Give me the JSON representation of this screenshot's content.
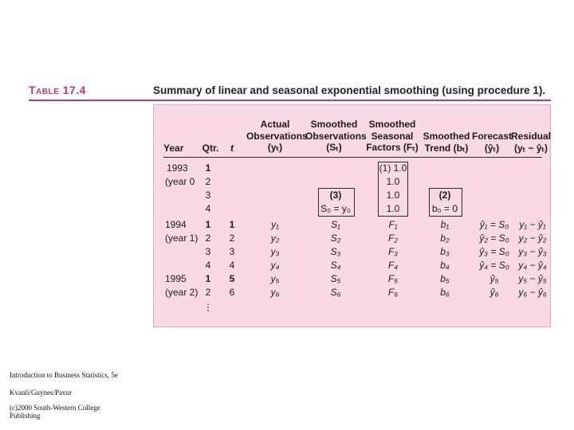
{
  "heading": {
    "table_label": "Table 17.4",
    "title": "Summary of linear and seasonal exponential smoothing (using procedure 1)."
  },
  "columns": {
    "year": "Year",
    "qtr": "Qtr.",
    "t": "t",
    "actual_1": "Actual",
    "actual_2": "Observations",
    "actual_3": "(yₜ)",
    "smoothed_1": "Smoothed",
    "smoothed_2": "Observations",
    "smoothed_3": "(Sₜ)",
    "seasonal_1": "Smoothed",
    "seasonal_2": "Seasonal",
    "seasonal_3": "Factors (Fₜ)",
    "trend_1": "Smoothed",
    "trend_2": "Trend (bₜ)",
    "forecast_1": "Forecast",
    "forecast_2": "(ŷₜ)",
    "residual_1": "Residual",
    "residual_2": "(yₜ − ŷₜ)"
  },
  "init": {
    "year_a": "1993",
    "year_b": "(year 0",
    "qtrs": [
      "1",
      "2",
      "3",
      "4"
    ],
    "seasonal": [
      "(1) 1.0",
      "1.0",
      "1.0",
      "1.0"
    ],
    "box3_label": "(3)",
    "box3_value": "S₀ = y₀",
    "box2_label": "(2)",
    "box2_value": "b₀ = 0"
  },
  "rows": [
    {
      "year": "1994",
      "qtr": "1",
      "t": "1",
      "y": "y₁",
      "s": "S₁",
      "f": "F₁",
      "b": "b₁",
      "fc": "ŷ₁ = S₀",
      "r": "y₁ − ŷ₁"
    },
    {
      "year": "(year 1)",
      "qtr": "2",
      "t": "2",
      "y": "y₂",
      "s": "S₂",
      "f": "F₂",
      "b": "b₂",
      "fc": "ŷ₂ = S₀",
      "r": "y₂ − ŷ₂"
    },
    {
      "year": "",
      "qtr": "3",
      "t": "3",
      "y": "y₃",
      "s": "S₃",
      "f": "F₃",
      "b": "b₃",
      "fc": "ŷ₃ = S₀",
      "r": "y₃ − ŷ₃"
    },
    {
      "year": "",
      "qtr": "4",
      "t": "4",
      "y": "y₄",
      "s": "S₄",
      "f": "F₄",
      "b": "b₄",
      "fc": "ŷ₄ = S₀",
      "r": "y₄ − ŷ₄"
    },
    {
      "year": "1995",
      "qtr": "1",
      "t": "5",
      "y": "y₅",
      "s": "S₅",
      "f": "F₅",
      "b": "b₅",
      "fc": "ŷ₅",
      "r": "y₅ − ŷ₅"
    },
    {
      "year": "(year 2)",
      "qtr": "2",
      "t": "6",
      "y": "y₆",
      "s": "S₆",
      "f": "F₆",
      "b": "b₆",
      "fc": "ŷ₆",
      "r": "y₆ − ŷ₆"
    }
  ],
  "ellipsis": "⋮",
  "footer": {
    "line1": "Introduction to Business Statistics, 5e",
    "line2": "Kvanli/Guynes/Pavur",
    "line3": "(c)2000 South-Western College",
    "line4": "Publishing"
  },
  "colors": {
    "accent": "#c23a63",
    "panel": "#f8d9e4"
  }
}
